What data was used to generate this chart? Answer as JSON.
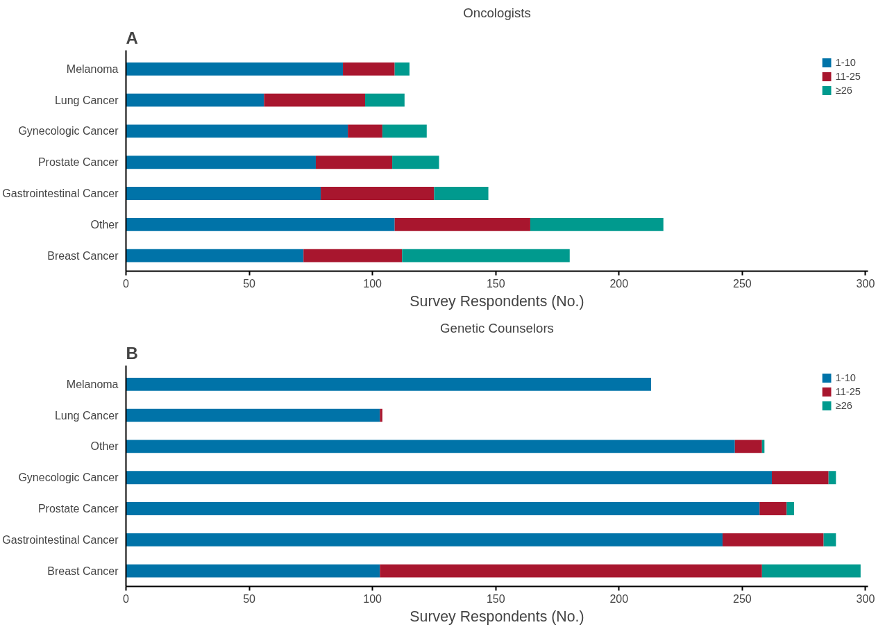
{
  "chart_data": [
    {
      "type": "bar",
      "orientation": "horizontal",
      "stacked": true,
      "title": "Oncologists",
      "xlabel": "Survey Respondents (No.)",
      "annotations": [
        "A"
      ],
      "categories": [
        "Melanoma",
        "Lung Cancer",
        "Gynecologic Cancer",
        "Prostate Cancer",
        "Gastrointestinal Cancer",
        "Other",
        "Breast Cancer"
      ],
      "series": [
        {
          "name": "1-10",
          "color": "#0073a8",
          "values": [
            88,
            56,
            90,
            77,
            79,
            109,
            72
          ]
        },
        {
          "name": "11-25",
          "color": "#a8162e",
          "values": [
            21,
            41,
            14,
            31,
            46,
            55,
            40
          ]
        },
        {
          "name": "≥26",
          "color": "#009a8e",
          "values": [
            6,
            16,
            18,
            19,
            22,
            54,
            68
          ]
        }
      ],
      "xlim": [
        0,
        301
      ],
      "xticks": [
        0,
        50,
        100,
        150,
        200,
        250,
        300
      ],
      "grid": false,
      "legend": "top right"
    },
    {
      "type": "bar",
      "orientation": "horizontal",
      "stacked": true,
      "title": "Genetic Counselors",
      "xlabel": "Survey Respondents (No.)",
      "annotations": [
        "B"
      ],
      "categories": [
        "Melanoma",
        "Lung Cancer",
        "Other",
        "Gynecologic Cancer",
        "Prostate Cancer",
        "Gastrointestinal Cancer",
        "Breast Cancer"
      ],
      "series": [
        {
          "name": "1-10",
          "color": "#0073a8",
          "values": [
            213,
            103,
            247,
            262,
            257,
            242,
            103
          ]
        },
        {
          "name": "11-25",
          "color": "#a8162e",
          "values": [
            0,
            1,
            11,
            23,
            11,
            41,
            155
          ]
        },
        {
          "name": "≥26",
          "color": "#009a8e",
          "values": [
            0,
            0,
            1,
            3,
            3,
            5,
            40
          ]
        }
      ],
      "xlim": [
        0,
        301
      ],
      "xticks": [
        0,
        50,
        100,
        150,
        200,
        250,
        300
      ],
      "grid": false,
      "legend": "top right"
    }
  ]
}
